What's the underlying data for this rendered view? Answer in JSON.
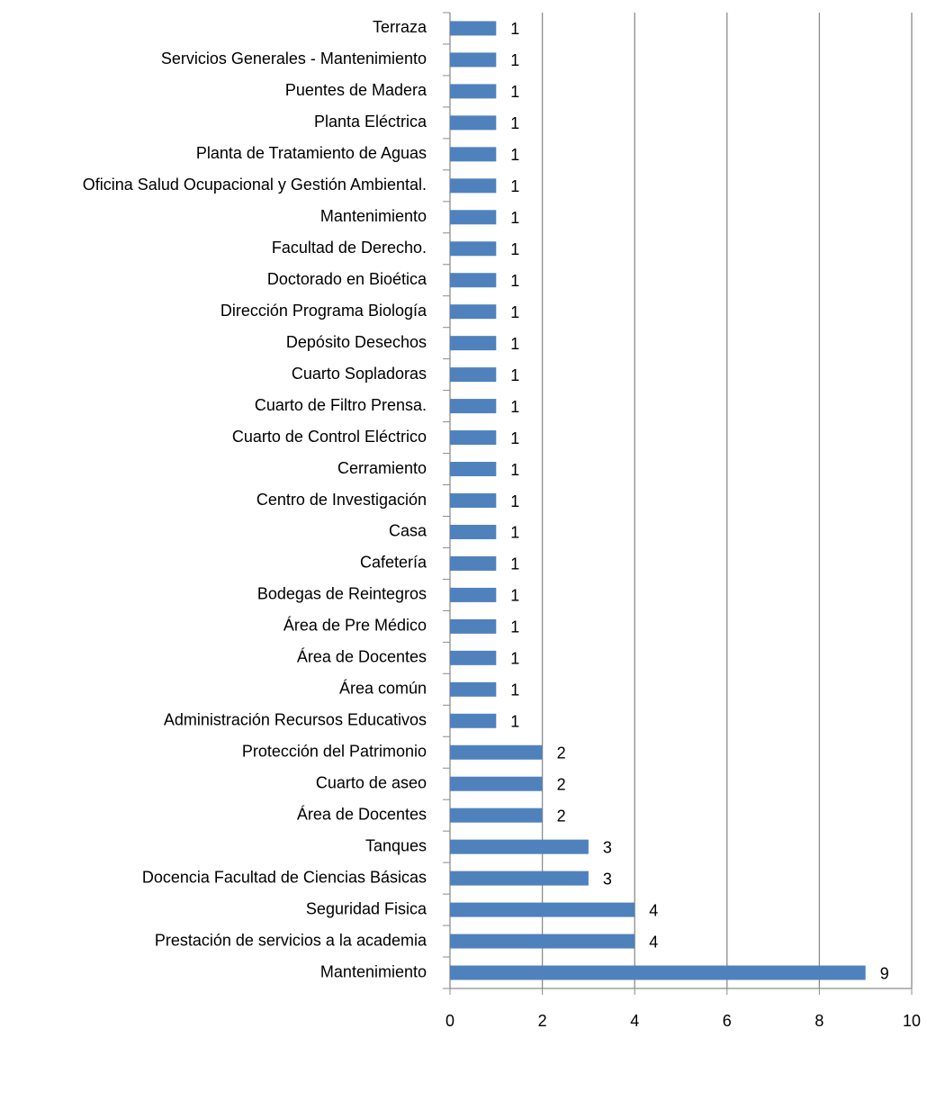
{
  "chart_data": {
    "type": "barh",
    "categories": [
      "Terraza",
      "Servicios Generales - Mantenimiento",
      "Puentes de Madera",
      "Planta Eléctrica",
      "Planta de Tratamiento de Aguas",
      "Oficina Salud Ocupacional y Gestión Ambiental.",
      "Mantenimiento",
      "Facultad de Derecho.",
      "Doctorado en Bioética",
      "Dirección Programa Biología",
      "Depósito Desechos",
      "Cuarto Sopladoras",
      "Cuarto de Filtro Prensa.",
      "Cuarto de Control Eléctrico",
      "Cerramiento",
      "Centro de Investigación",
      "Casa",
      "Cafetería",
      "Bodegas de Reintegros",
      "Área de Pre Médico",
      "Área de Docentes",
      "Área común",
      "Administración Recursos Educativos",
      "Protección del Patrimonio",
      "Cuarto de aseo",
      "Área de Docentes",
      "Tanques",
      "Docencia Facultad de Ciencias Básicas",
      "Seguridad Fisica",
      "Prestación de servicios a la academia",
      "Mantenimiento"
    ],
    "values": [
      1,
      1,
      1,
      1,
      1,
      1,
      1,
      1,
      1,
      1,
      1,
      1,
      1,
      1,
      1,
      1,
      1,
      1,
      1,
      1,
      1,
      1,
      1,
      2,
      2,
      2,
      3,
      3,
      4,
      4,
      9
    ],
    "color": "#4f81bd",
    "xlim": [
      0,
      10
    ],
    "xticks": [
      0,
      2,
      4,
      6,
      8,
      10
    ],
    "grid": true
  }
}
